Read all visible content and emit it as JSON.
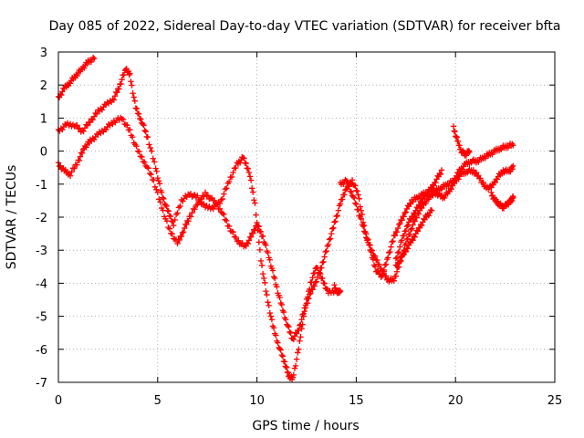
{
  "chart_data": {
    "type": "scatter",
    "title": "Day 085 of 2022, Sidereal Day-to-day VTEC variation (SDTVAR) for receiver bfta",
    "xlabel": "GPS time / hours",
    "ylabel": "SDTVAR / TECUs",
    "xlim": [
      0,
      25
    ],
    "ylim": [
      -7,
      3
    ],
    "xticks": [
      0,
      5,
      10,
      15,
      20,
      25
    ],
    "yticks": [
      3,
      2,
      1,
      0,
      -1,
      -2,
      -3,
      -4,
      -5,
      -6,
      -7
    ],
    "grid": true,
    "marker": "+",
    "color": "#ff0000",
    "series": [
      {
        "x": [
          0.0,
          0.3,
          0.6,
          0.9,
          1.2,
          1.5,
          1.8
        ],
        "y": [
          1.6,
          1.9,
          2.1,
          2.3,
          2.5,
          2.7,
          2.8
        ]
      },
      {
        "x": [
          0.0,
          0.4,
          0.8,
          1.2,
          1.6,
          2.0,
          2.4,
          2.8,
          3.1,
          3.4,
          3.6,
          3.9,
          4.2,
          4.5,
          4.9,
          5.2,
          5.5,
          5.8,
          6.2,
          6.6,
          7.0,
          7.4,
          7.8,
          8.2,
          8.6,
          9.0,
          9.3,
          9.6,
          9.9,
          10.2,
          10.5,
          10.8,
          11.1,
          11.4,
          11.6,
          11.8,
          12.1,
          12.4,
          12.7,
          13.0,
          13.3,
          13.6,
          14.0
        ],
        "y": [
          0.6,
          0.8,
          0.8,
          0.6,
          0.9,
          1.2,
          1.4,
          1.6,
          2.0,
          2.5,
          2.3,
          1.3,
          0.9,
          0.4,
          -0.5,
          -1.3,
          -1.8,
          -2.2,
          -1.5,
          -1.3,
          -1.4,
          -1.7,
          -1.7,
          -1.5,
          -0.9,
          -0.4,
          -0.2,
          -0.6,
          -1.6,
          -3.3,
          -4.4,
          -5.3,
          -5.9,
          -6.4,
          -6.8,
          -6.9,
          -6.0,
          -4.8,
          -4.0,
          -3.5,
          -3.9,
          -4.3,
          -4.2
        ]
      },
      {
        "x": [
          0.0,
          0.3,
          0.6,
          1.0,
          1.3,
          1.6,
          2.0,
          2.4,
          2.8,
          3.2,
          3.6,
          4.0,
          4.4,
          4.8,
          5.2,
          5.6,
          6.0,
          6.3,
          6.6,
          7.0,
          7.4,
          7.8,
          8.2,
          8.6,
          9.0,
          9.4,
          9.7,
          10.0,
          10.3,
          10.6,
          10.9,
          11.2,
          11.5,
          11.8,
          12.1,
          12.4,
          12.7,
          13.0,
          13.3,
          13.6,
          13.9,
          14.2,
          14.5,
          14.8,
          15.1,
          15.4,
          15.7,
          16.0,
          16.3,
          16.6,
          16.9,
          17.2,
          17.5,
          17.8,
          18.1,
          18.4,
          18.7,
          19.0,
          19.3
        ],
        "y": [
          -0.4,
          -0.6,
          -0.7,
          -0.3,
          0.1,
          0.3,
          0.5,
          0.7,
          0.9,
          1.0,
          0.6,
          0.0,
          -0.4,
          -0.9,
          -1.7,
          -2.4,
          -2.8,
          -2.4,
          -2.0,
          -1.6,
          -1.3,
          -1.5,
          -1.8,
          -2.3,
          -2.7,
          -2.9,
          -2.6,
          -2.2,
          -2.6,
          -3.2,
          -3.9,
          -4.6,
          -5.2,
          -5.7,
          -5.4,
          -4.8,
          -4.3,
          -3.9,
          -3.4,
          -2.8,
          -2.2,
          -1.6,
          -1.1,
          -0.9,
          -1.3,
          -2.3,
          -3.0,
          -3.6,
          -3.8,
          -3.2,
          -2.6,
          -2.2,
          -1.8,
          -1.5,
          -1.4,
          -1.3,
          -1.2,
          -0.9,
          -0.6
        ]
      },
      {
        "x": [
          14.2,
          14.5,
          14.8,
          15.1,
          15.4,
          15.7,
          16.0,
          16.3,
          16.6,
          16.9,
          17.2,
          17.5,
          17.8,
          18.1,
          18.4,
          18.7,
          19.0,
          19.3,
          19.6,
          19.9,
          20.2,
          20.5,
          20.8,
          21.1,
          21.4,
          21.7,
          22.0,
          22.3,
          22.6,
          22.9
        ],
        "y": [
          -1.0,
          -0.9,
          -1.3,
          -1.8,
          -2.4,
          -2.9,
          -3.3,
          -3.6,
          -3.9,
          -3.9,
          -3.4,
          -2.8,
          -2.3,
          -1.9,
          -1.6,
          -1.4,
          -1.2,
          -1.1,
          -1.0,
          -0.9,
          -0.6,
          -0.4,
          -0.3,
          -0.3,
          -0.2,
          -0.1,
          0.0,
          0.1,
          0.15,
          0.2
        ]
      },
      {
        "x": [
          17.0,
          17.3,
          17.6,
          17.9,
          18.2,
          18.5,
          18.8,
          19.1,
          19.4,
          19.7,
          20.0,
          20.3,
          20.6,
          20.9,
          21.2,
          21.5,
          21.8,
          22.1,
          22.4,
          22.7,
          22.9
        ],
        "y": [
          -3.3,
          -2.7,
          -2.2,
          -1.9,
          -1.6,
          -1.3,
          -1.2,
          -1.3,
          -1.4,
          -1.2,
          -0.9,
          -0.7,
          -0.6,
          -0.6,
          -0.8,
          -1.1,
          -1.1,
          -0.8,
          -0.6,
          -0.6,
          -0.5
        ]
      },
      {
        "x": [
          19.9,
          20.1,
          20.3,
          20.5,
          20.7
        ],
        "y": [
          0.7,
          0.3,
          0.0,
          -0.1,
          0.0
        ]
      },
      {
        "x": [
          21.8,
          22.0,
          22.2,
          22.4,
          22.6,
          22.8,
          22.9
        ],
        "y": [
          -1.3,
          -1.5,
          -1.6,
          -1.7,
          -1.6,
          -1.5,
          -1.4
        ]
      },
      {
        "x": [
          17.0,
          17.3,
          17.6,
          17.9,
          18.2,
          18.5,
          18.8
        ],
        "y": [
          -3.5,
          -3.2,
          -2.9,
          -2.6,
          -2.3,
          -2.0,
          -1.8
        ]
      },
      {
        "x": [
          13.9,
          14.05,
          14.2
        ],
        "y": [
          -4.1,
          -4.3,
          -4.2
        ]
      }
    ]
  }
}
